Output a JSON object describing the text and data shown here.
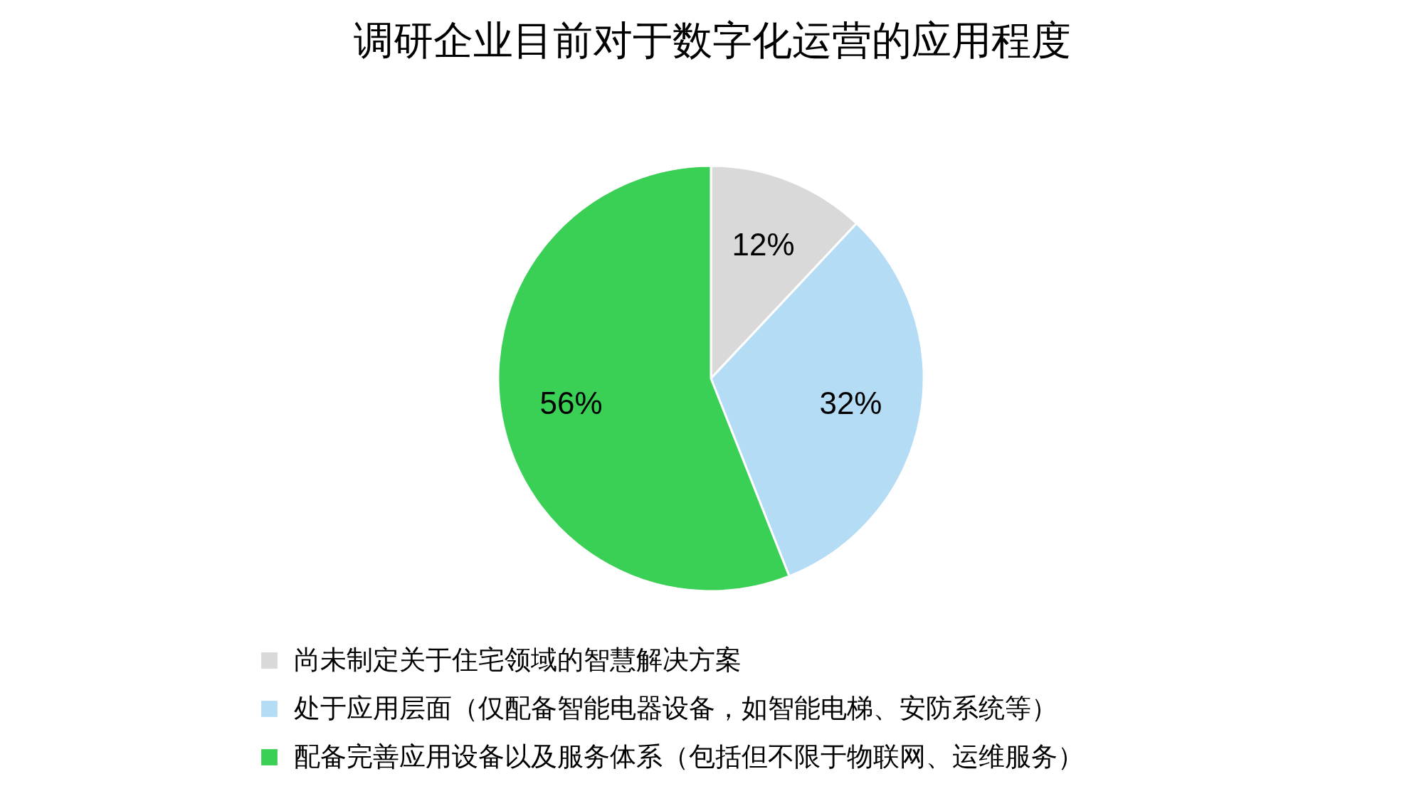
{
  "chart_data": {
    "type": "pie",
    "title": "调研企业目前对于数字化运营的应用程度",
    "categories": [
      "尚未制定关于住宅领域的智慧解决方案",
      "处于应用层面（仅配备智能电器设备，如智能电梯、安防系统等）",
      "配备完善应用设备以及服务体系（包括但不限于物联网、运维服务）"
    ],
    "values": [
      12,
      32,
      56
    ],
    "colors": [
      "#d9d9d9",
      "#b4dcf4",
      "#3acf55"
    ],
    "value_labels": [
      "12%",
      "32%",
      "56%"
    ],
    "legend": "bottom"
  }
}
